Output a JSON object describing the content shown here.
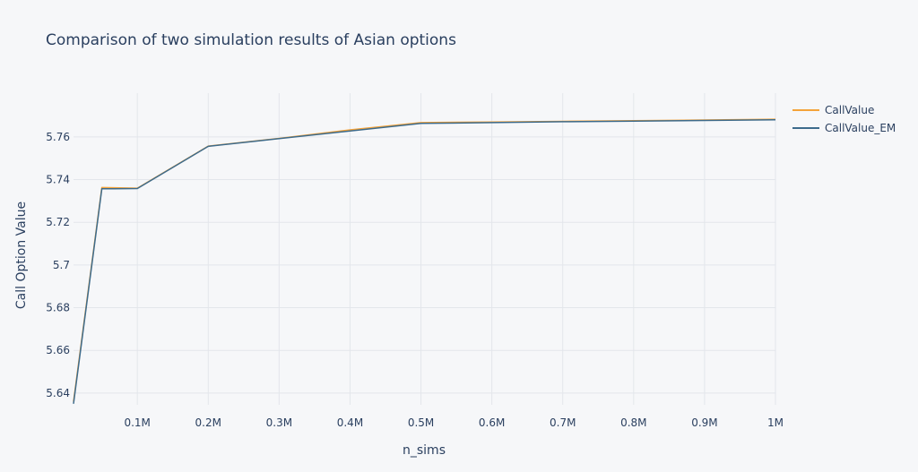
{
  "chart_data": {
    "type": "line",
    "title": "Comparison of two simulation results of Asian options",
    "xlabel": "n_sims",
    "ylabel": "Call Option Value",
    "xlim": [
      10000,
      1000000
    ],
    "ylim": [
      5.6345,
      5.7805
    ],
    "grid": true,
    "legend_position": "top-right",
    "xticks": [
      {
        "value": 100000,
        "label": "0.1M"
      },
      {
        "value": 200000,
        "label": "0.2M"
      },
      {
        "value": 300000,
        "label": "0.3M"
      },
      {
        "value": 400000,
        "label": "0.4M"
      },
      {
        "value": 500000,
        "label": "0.5M"
      },
      {
        "value": 600000,
        "label": "0.6M"
      },
      {
        "value": 700000,
        "label": "0.7M"
      },
      {
        "value": 800000,
        "label": "0.8M"
      },
      {
        "value": 900000,
        "label": "0.9M"
      },
      {
        "value": 1000000,
        "label": "1M"
      }
    ],
    "yticks": [
      {
        "value": 5.64,
        "label": "5.64"
      },
      {
        "value": 5.66,
        "label": "5.66"
      },
      {
        "value": 5.68,
        "label": "5.68"
      },
      {
        "value": 5.7,
        "label": "5.7"
      },
      {
        "value": 5.72,
        "label": "5.72"
      },
      {
        "value": 5.74,
        "label": "5.74"
      },
      {
        "value": 5.76,
        "label": "5.76"
      }
    ],
    "x": [
      10000,
      50000,
      100000,
      200000,
      300000,
      400000,
      500000,
      600000,
      700000,
      800000,
      900000,
      1000000
    ],
    "series": [
      {
        "name": "CallValue",
        "color": "#f4a33a",
        "values": [
          5.636,
          5.7363,
          5.736,
          5.7557,
          5.7593,
          5.7633,
          5.7667,
          5.767,
          5.7673,
          5.7676,
          5.7679,
          5.7683
        ]
      },
      {
        "name": "CallValue_EM",
        "color": "#3d6b8c",
        "values": [
          5.635,
          5.7357,
          5.7358,
          5.7556,
          5.7592,
          5.7628,
          5.7663,
          5.7667,
          5.7671,
          5.7674,
          5.7677,
          5.768
        ]
      }
    ]
  }
}
